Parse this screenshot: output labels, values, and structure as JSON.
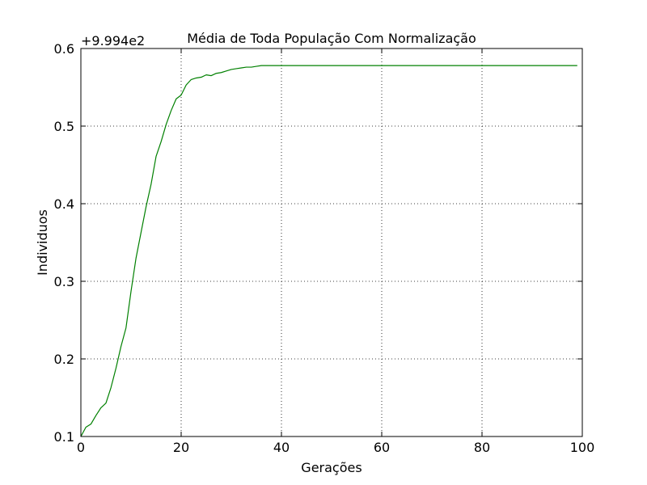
{
  "chart_data": {
    "type": "line",
    "title": "Média de Toda População Com Normalização",
    "xlabel": "Gerações",
    "ylabel": "Individuos",
    "offset_label": "+9.994e2",
    "xlim": [
      0,
      100
    ],
    "ylim": [
      0.1,
      0.6
    ],
    "xticks": [
      0,
      20,
      40,
      60,
      80,
      100
    ],
    "yticks": [
      0.1,
      0.2,
      0.3,
      0.4,
      0.5,
      0.6
    ],
    "xtick_labels": [
      "0",
      "20",
      "40",
      "60",
      "80",
      "100"
    ],
    "ytick_labels": [
      "0.1",
      "0.2",
      "0.3",
      "0.4",
      "0.5",
      "0.6"
    ],
    "grid": true,
    "series": [
      {
        "color": "#008000",
        "x": [
          0,
          1,
          2,
          3,
          4,
          5,
          6,
          7,
          8,
          9,
          10,
          11,
          12,
          13,
          14,
          15,
          16,
          17,
          18,
          19,
          20,
          21,
          22,
          23,
          24,
          25,
          26,
          27,
          28,
          29,
          30,
          31,
          32,
          33,
          34,
          35,
          36,
          37,
          38,
          39,
          40,
          41,
          42,
          43,
          44,
          45,
          46,
          47,
          48,
          49,
          50,
          51,
          52,
          53,
          54,
          55,
          56,
          57,
          58,
          59,
          60,
          61,
          62,
          63,
          64,
          65,
          66,
          67,
          68,
          69,
          70,
          71,
          72,
          73,
          74,
          75,
          76,
          77,
          78,
          79,
          80,
          81,
          82,
          83,
          84,
          85,
          86,
          87,
          88,
          89,
          90,
          91,
          92,
          93,
          94,
          95,
          96,
          97,
          98,
          99
        ],
        "values": [
          0.1,
          0.112,
          0.116,
          0.127,
          0.137,
          0.143,
          0.163,
          0.188,
          0.216,
          0.24,
          0.287,
          0.33,
          0.363,
          0.396,
          0.425,
          0.461,
          0.48,
          0.502,
          0.52,
          0.535,
          0.54,
          0.553,
          0.56,
          0.562,
          0.563,
          0.566,
          0.565,
          0.568,
          0.569,
          0.571,
          0.573,
          0.574,
          0.575,
          0.576,
          0.576,
          0.577,
          0.578,
          0.578,
          0.578,
          0.578,
          0.578,
          0.578,
          0.578,
          0.578,
          0.578,
          0.578,
          0.578,
          0.578,
          0.578,
          0.578,
          0.578,
          0.578,
          0.578,
          0.578,
          0.578,
          0.578,
          0.578,
          0.578,
          0.578,
          0.578,
          0.578,
          0.578,
          0.578,
          0.578,
          0.578,
          0.578,
          0.578,
          0.578,
          0.578,
          0.578,
          0.578,
          0.578,
          0.578,
          0.578,
          0.578,
          0.578,
          0.578,
          0.578,
          0.578,
          0.578,
          0.578,
          0.578,
          0.578,
          0.578,
          0.578,
          0.578,
          0.578,
          0.578,
          0.578,
          0.578,
          0.578,
          0.578,
          0.578,
          0.578,
          0.578,
          0.578,
          0.578,
          0.578,
          0.578,
          0.578
        ]
      }
    ]
  }
}
